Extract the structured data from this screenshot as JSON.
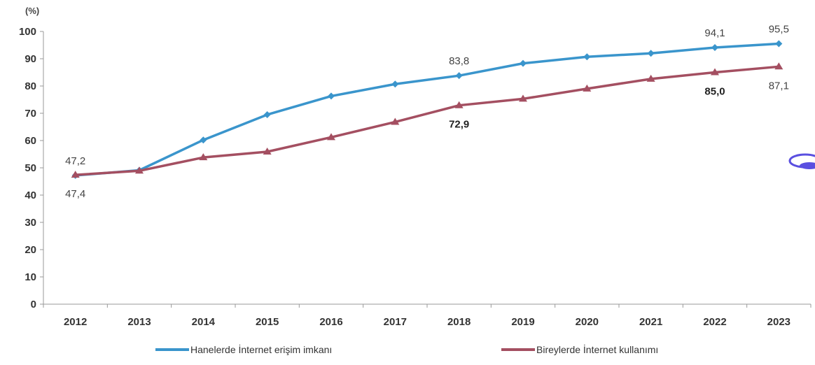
{
  "chart_data": {
    "type": "line",
    "unit_label": "(%)",
    "categories": [
      "2012",
      "2013",
      "2014",
      "2015",
      "2016",
      "2017",
      "2018",
      "2019",
      "2020",
      "2021",
      "2022",
      "2023"
    ],
    "y_ticks": [
      0,
      10,
      20,
      30,
      40,
      50,
      60,
      70,
      80,
      90,
      100
    ],
    "ylim": [
      0,
      100
    ],
    "grid": false,
    "legend_position": "bottom",
    "series": [
      {
        "name": "Hanelerde İnternet erişim imkanı",
        "color": "#3a95cc",
        "marker": "diamond",
        "values": [
          47.2,
          49.1,
          60.2,
          69.5,
          76.3,
          80.7,
          83.8,
          88.3,
          90.7,
          92.0,
          94.1,
          95.5
        ]
      },
      {
        "name": "Bireylerde İnternet kullanımı",
        "color": "#a44f61",
        "marker": "triangle",
        "values": [
          47.4,
          48.9,
          53.8,
          55.9,
          61.2,
          66.8,
          72.9,
          75.3,
          79.0,
          82.6,
          85.0,
          87.1
        ]
      }
    ],
    "data_labels": [
      {
        "series": 0,
        "index": 0,
        "text": "47,2",
        "pos": "above",
        "bold": false
      },
      {
        "series": 1,
        "index": 0,
        "text": "47,4",
        "pos": "below",
        "bold": false
      },
      {
        "series": 0,
        "index": 6,
        "text": "83,8",
        "pos": "above",
        "bold": false
      },
      {
        "series": 1,
        "index": 6,
        "text": "72,9",
        "pos": "below",
        "bold": true
      },
      {
        "series": 0,
        "index": 10,
        "text": "94,1",
        "pos": "above",
        "bold": false
      },
      {
        "series": 1,
        "index": 10,
        "text": "85,0",
        "pos": "below",
        "bold": true
      },
      {
        "series": 0,
        "index": 11,
        "text": "95,5",
        "pos": "above",
        "bold": false
      },
      {
        "series": 1,
        "index": 11,
        "text": "87,1",
        "pos": "below",
        "bold": false
      }
    ]
  },
  "legend": {
    "items": [
      {
        "label": "Hanelerde İnternet erişim imkanı",
        "color": "#3a95cc"
      },
      {
        "label": "Bireylerde İnternet kullanımı",
        "color": "#a44f61"
      }
    ]
  }
}
